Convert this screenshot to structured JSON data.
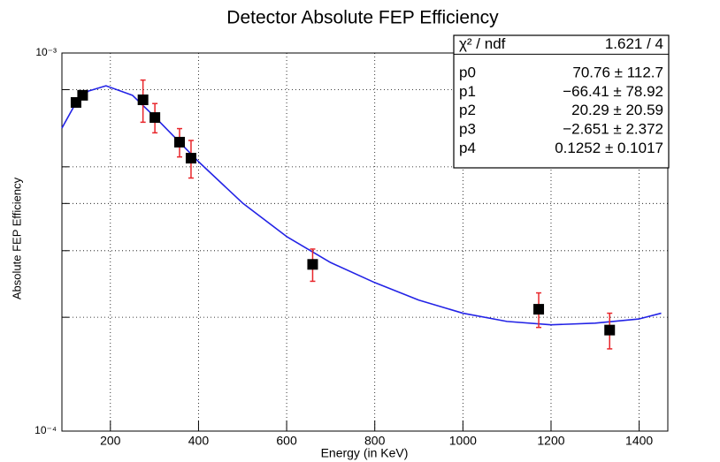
{
  "chart_data": {
    "type": "scatter",
    "title": "Detector Absolute FEP Efficiency",
    "x_label": "Energy (in KeV)",
    "y_label": "Absolute FEP Efficiency",
    "log_y": true,
    "grid": true,
    "xlim": [
      90,
      1465
    ],
    "ylim": [
      0.0001,
      0.001
    ],
    "xticks": [
      200,
      400,
      600,
      800,
      1000,
      1200,
      1400
    ],
    "yticks": [
      {
        "value": 0.0001,
        "label": "10⁻⁴"
      },
      {
        "value": 0.001,
        "label": "10⁻³"
      }
    ],
    "y_minor_ticks": [
      0.0002,
      0.0003,
      0.0004,
      0.0005,
      0.0008
    ],
    "series": [
      {
        "marker_color": "#000000",
        "error_color": "#e8262b",
        "x": [
          122,
          137,
          274,
          301,
          357,
          383,
          659,
          1172,
          1333
        ],
        "values": [
          0.00074,
          0.000773,
          0.000752,
          0.000675,
          0.000581,
          0.000527,
          0.000276,
          0.00021,
          0.000185
        ],
        "errors": [
          2e-05,
          2e-05,
          9.6e-05,
          6e-05,
          5e-05,
          6e-05,
          2.7e-05,
          2.2e-05,
          2e-05
        ]
      },
      {
        "line_color": "#2323e6",
        "x": [
          90,
          120,
          150,
          190,
          250,
          300,
          400,
          500,
          600,
          700,
          800,
          900,
          1000,
          1100,
          1200,
          1300,
          1400,
          1450
        ],
        "values": [
          0.000633,
          0.000732,
          0.000793,
          0.000819,
          0.000773,
          0.000679,
          0.000516,
          0.000401,
          0.000327,
          0.000279,
          0.000247,
          0.000222,
          0.000205,
          0.000195,
          0.000191,
          0.000193,
          0.000198,
          0.000205
        ]
      }
    ],
    "stats": [
      {
        "name": "χ² / ndf",
        "value": "1.621 / 4"
      },
      {
        "name": "p0",
        "value": "70.76 ± 112.7"
      },
      {
        "name": "p1",
        "value": "−66.41 ± 78.92"
      },
      {
        "name": "p2",
        "value": "20.29 ± 20.59"
      },
      {
        "name": "p3",
        "value": "−2.651 ± 2.372"
      },
      {
        "name": "p4",
        "value": "0.1252 ± 0.1017"
      }
    ]
  }
}
